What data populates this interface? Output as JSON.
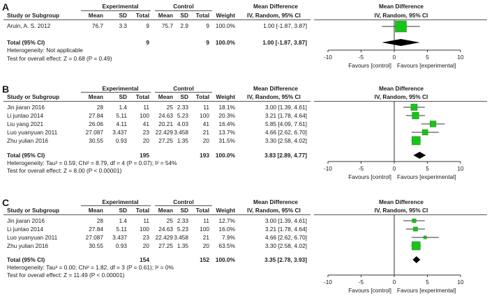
{
  "chart_data": [
    {
      "type": "forest",
      "panel_label": "A",
      "headers": {
        "study": "Study or Subgroup",
        "group1": "Experimental",
        "group2": "Control",
        "mean": "Mean",
        "sd": "SD",
        "total": "Total",
        "weight": "Weight",
        "md_title": "Mean Difference",
        "md_sub": "IV, Random, 95% CI",
        "plot_title": "Mean Difference",
        "plot_sub": "IV, Random, 95% CI"
      },
      "studies": [
        {
          "name": "Aruin, A. S. 2012",
          "exp_mean": "76.7",
          "exp_sd": "3.3",
          "exp_total": "9",
          "ctl_mean": "75.7",
          "ctl_sd": "2.9",
          "ctl_total": "9",
          "weight": "100.0%",
          "ci_text": "1.00 [-1.87, 3.87]",
          "md": 1.0,
          "lo": -1.87,
          "hi": 3.87,
          "w": 100.0
        }
      ],
      "total": {
        "label": "Total (95% CI)",
        "exp_total": "9",
        "ctl_total": "9",
        "weight": "100.0%",
        "ci_text": "1.00 [-1.87, 3.87]",
        "md": 1.0,
        "lo": -1.87,
        "hi": 3.87
      },
      "heterogeneity": "Heterogeneity: Not applicable",
      "overall_effect": "Test for overall effect: Z = 0.68 (P = 0.49)",
      "axis": {
        "ticks": [
          -10,
          -5,
          0,
          5,
          10
        ],
        "tick_labels": [
          "-10",
          "-5",
          "0",
          "5",
          "10"
        ],
        "range": [
          -10,
          10
        ]
      },
      "favours_left": "Favours [control]",
      "favours_right": "Favours [experimental]"
    },
    {
      "type": "forest",
      "panel_label": "B",
      "headers": {
        "study": "Study or Subgroup",
        "group1": "Experimental",
        "group2": "Control",
        "mean": "Mean",
        "sd": "SD",
        "total": "Total",
        "weight": "Weight",
        "md_title": "Mean Difference",
        "md_sub": "IV, Random, 95% CI",
        "plot_title": "Mean Difference",
        "plot_sub": "IV, Random, 95% CI"
      },
      "studies": [
        {
          "name": "Jin jiaran 2016",
          "exp_mean": "28",
          "exp_sd": "1.4",
          "exp_total": "11",
          "ctl_mean": "25",
          "ctl_sd": "2.33",
          "ctl_total": "11",
          "weight": "18.1%",
          "ci_text": "3.00 [1.39, 4.61]",
          "md": 3.0,
          "lo": 1.39,
          "hi": 4.61,
          "w": 18.1
        },
        {
          "name": "Li juntao 2014",
          "exp_mean": "27.84",
          "exp_sd": "5.11",
          "exp_total": "100",
          "ctl_mean": "24.63",
          "ctl_sd": "5.23",
          "ctl_total": "100",
          "weight": "20.3%",
          "ci_text": "3.21 [1.78, 4.64]",
          "md": 3.21,
          "lo": 1.78,
          "hi": 4.64,
          "w": 20.3
        },
        {
          "name": "Liu yang 2021",
          "exp_mean": "26.06",
          "exp_sd": "4.11",
          "exp_total": "41",
          "ctl_mean": "20.21",
          "ctl_sd": "4.03",
          "ctl_total": "41",
          "weight": "16.4%",
          "ci_text": "5.85 [4.09, 7.61]",
          "md": 5.85,
          "lo": 4.09,
          "hi": 7.61,
          "w": 16.4
        },
        {
          "name": "Luo yuanyuan 2011",
          "exp_mean": "27.087",
          "exp_sd": "3.437",
          "exp_total": "23",
          "ctl_mean": "22.429",
          "ctl_sd": "3.458",
          "ctl_total": "21",
          "weight": "13.7%",
          "ci_text": "4.66 [2.62, 6.70]",
          "md": 4.66,
          "lo": 2.62,
          "hi": 6.7,
          "w": 13.7
        },
        {
          "name": "Zhu yulian 2016",
          "exp_mean": "30.55",
          "exp_sd": "0.93",
          "exp_total": "20",
          "ctl_mean": "27.25",
          "ctl_sd": "1.35",
          "ctl_total": "20",
          "weight": "31.5%",
          "ci_text": "3.30 [2.58, 4.02]",
          "md": 3.3,
          "lo": 2.58,
          "hi": 4.02,
          "w": 31.5
        }
      ],
      "total": {
        "label": "Total (95% CI)",
        "exp_total": "195",
        "ctl_total": "193",
        "weight": "100.0%",
        "ci_text": "3.83 [2.89, 4.77]",
        "md": 3.83,
        "lo": 2.89,
        "hi": 4.77
      },
      "heterogeneity": "Heterogeneity: Tau² = 0.59; Chi² = 8.79, df = 4 (P = 0.07); I² = 54%",
      "overall_effect": "Test for overall effect: Z = 8.00 (P < 0.00001)",
      "axis": {
        "ticks": [
          -10,
          -5,
          0,
          5,
          10
        ],
        "tick_labels": [
          "-10",
          "-5",
          "0",
          "5",
          "10"
        ],
        "range": [
          -10,
          10
        ]
      },
      "favours_left": "Favours [control]",
      "favours_right": "Favours [experimental]"
    },
    {
      "type": "forest",
      "panel_label": "C",
      "headers": {
        "study": "Study or Subgroup",
        "group1": "Experimental",
        "group2": "Control",
        "mean": "Mean",
        "sd": "SD",
        "total": "Total",
        "weight": "Weight",
        "md_title": "Mean Difference",
        "md_sub": "IV, Random, 95% CI",
        "plot_title": "Mean Difference",
        "plot_sub": "IV, Random, 95% CI"
      },
      "studies": [
        {
          "name": "Jin jiaran 2016",
          "exp_mean": "28",
          "exp_sd": "1.4",
          "exp_total": "11",
          "ctl_mean": "25",
          "ctl_sd": "2.33",
          "ctl_total": "11",
          "weight": "12.7%",
          "ci_text": "3.00 [1.39, 4.61]",
          "md": 3.0,
          "lo": 1.39,
          "hi": 4.61,
          "w": 12.7
        },
        {
          "name": "Li juntao 2014",
          "exp_mean": "27.84",
          "exp_sd": "5.11",
          "exp_total": "100",
          "ctl_mean": "24.63",
          "ctl_sd": "5.23",
          "ctl_total": "100",
          "weight": "16.0%",
          "ci_text": "3.21 [1.78, 4.64]",
          "md": 3.21,
          "lo": 1.78,
          "hi": 4.64,
          "w": 16.0
        },
        {
          "name": "Luo yuanyuan 2011",
          "exp_mean": "27.087",
          "exp_sd": "3.437",
          "exp_total": "23",
          "ctl_mean": "22.429",
          "ctl_sd": "3.458",
          "ctl_total": "21",
          "weight": "7.9%",
          "ci_text": "4.66 [2.62, 6.70]",
          "md": 4.66,
          "lo": 2.62,
          "hi": 6.7,
          "w": 7.9
        },
        {
          "name": "Zhu yulian 2016",
          "exp_mean": "30.55",
          "exp_sd": "0.93",
          "exp_total": "20",
          "ctl_mean": "27.25",
          "ctl_sd": "1.35",
          "ctl_total": "20",
          "weight": "63.5%",
          "ci_text": "3.30 [2.58, 4.02]",
          "md": 3.3,
          "lo": 2.58,
          "hi": 4.02,
          "w": 63.5
        }
      ],
      "total": {
        "label": "Total (95% CI)",
        "exp_total": "154",
        "ctl_total": "152",
        "weight": "100.0%",
        "ci_text": "3.35 [2.78, 3.93]",
        "md": 3.35,
        "lo": 2.78,
        "hi": 3.93
      },
      "heterogeneity": "Heterogeneity: Tau² = 0.00; Chi² = 1.82, df = 3 (P = 0.61); I² = 0%",
      "overall_effect": "Test for overall effect: Z = 11.49 (P < 0.00001)",
      "axis": {
        "ticks": [
          -10,
          -5,
          0,
          5,
          10
        ],
        "tick_labels": [
          "-10",
          "-5",
          "0",
          "5",
          "10"
        ],
        "range": [
          -10,
          10
        ]
      },
      "favours_left": "Favours [control]",
      "favours_right": "Favours [experimental]"
    }
  ],
  "colors": {
    "square": "#19c319",
    "square_edge": "#0b8a0b",
    "diamond": "#000000",
    "text": "#1a1a1a",
    "rule": "#555555"
  }
}
